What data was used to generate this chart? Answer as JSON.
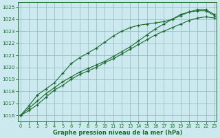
{
  "title": "Graphe pression niveau de la mer (hPa)",
  "bg_color": "#cce9f0",
  "grid_color": "#9bbfc8",
  "line_color": "#1a6b2a",
  "xlim": [
    -0.3,
    23.3
  ],
  "ylim": [
    1015.5,
    1025.4
  ],
  "yticks": [
    1016,
    1017,
    1018,
    1019,
    1020,
    1021,
    1022,
    1023,
    1024,
    1025
  ],
  "xticks": [
    0,
    1,
    2,
    3,
    4,
    5,
    6,
    7,
    8,
    9,
    10,
    11,
    12,
    13,
    14,
    15,
    16,
    17,
    18,
    19,
    20,
    21,
    22,
    23
  ],
  "series1_x": [
    0,
    1,
    2,
    3,
    4,
    5,
    6,
    7,
    8,
    9,
    10,
    11,
    12,
    13,
    14,
    15,
    16,
    17,
    18,
    19,
    20,
    21,
    22,
    23
  ],
  "series1": [
    1016.0,
    1016.4,
    1016.9,
    1017.5,
    1018.1,
    1018.5,
    1019.0,
    1019.4,
    1019.7,
    1020.0,
    1020.4,
    1020.7,
    1021.1,
    1021.5,
    1021.9,
    1022.3,
    1022.7,
    1023.0,
    1023.3,
    1023.6,
    1023.9,
    1024.1,
    1024.2,
    1024.1
  ],
  "series2_x": [
    0,
    1,
    2,
    3,
    4,
    5,
    6,
    7,
    8,
    9,
    10,
    11,
    12,
    13,
    14,
    15,
    16,
    17,
    18,
    19,
    20,
    21,
    22,
    23
  ],
  "series2": [
    1016.0,
    1016.8,
    1017.7,
    1018.2,
    1018.7,
    1019.5,
    1020.3,
    1020.8,
    1021.2,
    1021.6,
    1022.1,
    1022.6,
    1023.0,
    1023.3,
    1023.5,
    1023.6,
    1023.7,
    1023.8,
    1024.0,
    1024.3,
    1024.6,
    1024.7,
    1024.7,
    1024.3
  ],
  "series3_x": [
    0,
    1,
    2,
    3,
    4,
    5,
    6,
    7,
    8,
    9,
    10,
    11,
    12,
    13,
    14,
    15,
    16,
    17,
    18,
    19,
    20,
    21,
    22,
    23
  ],
  "series3": [
    1016.0,
    1016.6,
    1017.2,
    1017.8,
    1018.3,
    1018.8,
    1019.2,
    1019.6,
    1019.9,
    1020.2,
    1020.5,
    1020.9,
    1021.3,
    1021.7,
    1022.2,
    1022.7,
    1023.2,
    1023.6,
    1024.0,
    1024.4,
    1024.6,
    1024.8,
    1024.8,
    1024.4
  ]
}
